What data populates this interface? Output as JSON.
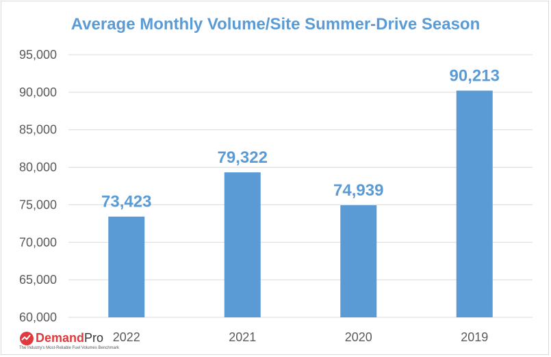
{
  "chart_data": {
    "type": "bar",
    "title": "Average Monthly Volume/Site Summer-Drive Season",
    "categories": [
      "2022",
      "2021",
      "2020",
      "2019"
    ],
    "values": [
      73423,
      79322,
      74939,
      90213
    ],
    "value_labels": [
      "73,423",
      "79,322",
      "74,939",
      "90,213"
    ],
    "ylim": [
      60000,
      95000
    ],
    "y_ticks": [
      60000,
      65000,
      70000,
      75000,
      80000,
      85000,
      90000,
      95000
    ],
    "y_tick_labels": [
      "60,000",
      "65,000",
      "70,000",
      "75,000",
      "80,000",
      "85,000",
      "90,000",
      "95,000"
    ],
    "xlabel": "",
    "ylabel": "",
    "grid": true,
    "bar_color": "#5b9bd5",
    "label_color": "#5b9bd5"
  },
  "logo": {
    "name_part1": "Demand",
    "name_part2": "Pro",
    "tagline": "The Industry's Most-Reliable Fuel Volumes Benchmark",
    "icon": "demandpro-logo-icon",
    "accent_color": "#e03a3e"
  }
}
